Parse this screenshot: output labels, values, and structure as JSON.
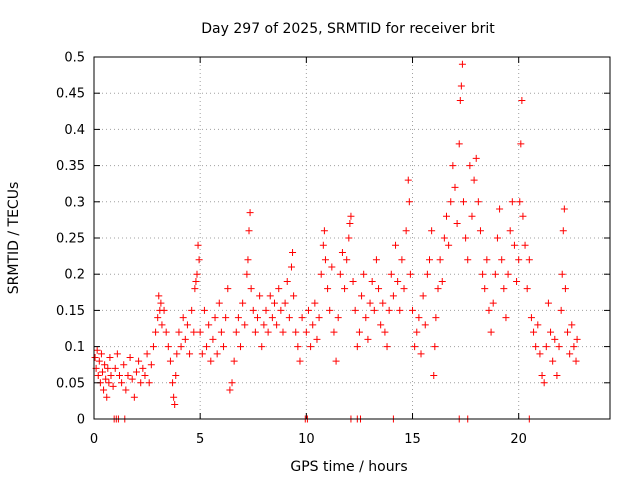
{
  "chart_data": {
    "type": "scatter",
    "title": "Day 297 of 2025, SRMTID for receiver brit",
    "xlabel": "GPS time / hours",
    "ylabel": "SRMTID / TECUs",
    "xlim": [
      0,
      24.3
    ],
    "ylim": [
      0,
      0.5
    ],
    "xticks": [
      0,
      5,
      10,
      15,
      20
    ],
    "xtick_labels": [
      "0",
      "5",
      "10",
      "15",
      "20"
    ],
    "yticks": [
      0,
      0.05,
      0.1,
      0.15,
      0.2,
      0.25,
      0.3,
      0.35,
      0.4,
      0.45,
      0.5
    ],
    "ytick_labels": [
      "0",
      "0.05",
      "0.1",
      "0.15",
      "0.2",
      "0.25",
      "0.3",
      "0.35",
      "0.4",
      "0.45",
      "0.5"
    ],
    "grid": true,
    "marker": "plus",
    "marker_color": "#ff0000",
    "series": [
      {
        "name": "SRMTID",
        "points": [
          [
            0.05,
            0.085
          ],
          [
            0.1,
            0.07
          ],
          [
            0.15,
            0.095
          ],
          [
            0.2,
            0.06
          ],
          [
            0.25,
            0.08
          ],
          [
            0.3,
            0.05
          ],
          [
            0.35,
            0.09
          ],
          [
            0.4,
            0.065
          ],
          [
            0.45,
            0.04
          ],
          [
            0.5,
            0.075
          ],
          [
            0.55,
            0.055
          ],
          [
            0.6,
            0.03
          ],
          [
            0.65,
            0.07
          ],
          [
            0.7,
            0.05
          ],
          [
            0.75,
            0.085
          ],
          [
            0.8,
            0.06
          ],
          [
            0.9,
            0.045
          ],
          [
            1.0,
            0.07
          ],
          [
            1.1,
            0.09
          ],
          [
            1.2,
            0.06
          ],
          [
            1.3,
            0.05
          ],
          [
            1.4,
            0.075
          ],
          [
            1.5,
            0.04
          ],
          [
            1.6,
            0.06
          ],
          [
            1.7,
            0.085
          ],
          [
            1.8,
            0.055
          ],
          [
            1.9,
            0.03
          ],
          [
            2.0,
            0.065
          ],
          [
            2.1,
            0.08
          ],
          [
            2.2,
            0.05
          ],
          [
            2.3,
            0.07
          ],
          [
            2.4,
            0.06
          ],
          [
            2.5,
            0.09
          ],
          [
            2.6,
            0.05
          ],
          [
            2.7,
            0.075
          ],
          [
            2.8,
            0.1
          ],
          [
            2.9,
            0.12
          ],
          [
            3.0,
            0.14
          ],
          [
            3.05,
            0.17
          ],
          [
            3.1,
            0.15
          ],
          [
            3.15,
            0.16
          ],
          [
            3.2,
            0.13
          ],
          [
            3.3,
            0.15
          ],
          [
            3.4,
            0.12
          ],
          [
            3.5,
            0.1
          ],
          [
            3.6,
            0.08
          ],
          [
            3.7,
            0.05
          ],
          [
            3.75,
            0.03
          ],
          [
            3.8,
            0.02
          ],
          [
            3.85,
            0.06
          ],
          [
            3.9,
            0.09
          ],
          [
            4.0,
            0.12
          ],
          [
            4.1,
            0.1
          ],
          [
            4.2,
            0.14
          ],
          [
            4.3,
            0.11
          ],
          [
            4.4,
            0.13
          ],
          [
            4.5,
            0.09
          ],
          [
            4.6,
            0.15
          ],
          [
            4.7,
            0.12
          ],
          [
            4.75,
            0.18
          ],
          [
            4.8,
            0.19
          ],
          [
            4.85,
            0.2
          ],
          [
            4.9,
            0.24
          ],
          [
            4.95,
            0.22
          ],
          [
            5.0,
            0.12
          ],
          [
            5.1,
            0.09
          ],
          [
            5.2,
            0.15
          ],
          [
            5.3,
            0.1
          ],
          [
            5.4,
            0.13
          ],
          [
            5.5,
            0.08
          ],
          [
            5.6,
            0.11
          ],
          [
            5.7,
            0.14
          ],
          [
            5.8,
            0.09
          ],
          [
            5.9,
            0.16
          ],
          [
            6.0,
            0.12
          ],
          [
            6.1,
            0.1
          ],
          [
            6.2,
            0.14
          ],
          [
            6.3,
            0.18
          ],
          [
            6.4,
            0.04
          ],
          [
            6.5,
            0.05
          ],
          [
            6.6,
            0.08
          ],
          [
            6.7,
            0.12
          ],
          [
            6.8,
            0.14
          ],
          [
            6.9,
            0.1
          ],
          [
            7.0,
            0.16
          ],
          [
            7.1,
            0.13
          ],
          [
            7.2,
            0.2
          ],
          [
            7.25,
            0.22
          ],
          [
            7.3,
            0.26
          ],
          [
            7.35,
            0.285
          ],
          [
            7.4,
            0.18
          ],
          [
            7.5,
            0.15
          ],
          [
            7.6,
            0.12
          ],
          [
            7.7,
            0.14
          ],
          [
            7.8,
            0.17
          ],
          [
            7.9,
            0.1
          ],
          [
            8.0,
            0.13
          ],
          [
            8.1,
            0.15
          ],
          [
            8.2,
            0.12
          ],
          [
            8.3,
            0.17
          ],
          [
            8.4,
            0.14
          ],
          [
            8.5,
            0.16
          ],
          [
            8.6,
            0.13
          ],
          [
            8.7,
            0.18
          ],
          [
            8.8,
            0.15
          ],
          [
            8.9,
            0.12
          ],
          [
            9.0,
            0.16
          ],
          [
            9.1,
            0.19
          ],
          [
            9.2,
            0.14
          ],
          [
            9.3,
            0.21
          ],
          [
            9.35,
            0.23
          ],
          [
            9.4,
            0.17
          ],
          [
            9.5,
            0.12
          ],
          [
            9.6,
            0.1
          ],
          [
            9.7,
            0.08
          ],
          [
            9.8,
            0.14
          ],
          [
            10.0,
            0.12
          ],
          [
            10.1,
            0.15
          ],
          [
            10.2,
            0.1
          ],
          [
            10.3,
            0.13
          ],
          [
            10.4,
            0.16
          ],
          [
            10.5,
            0.11
          ],
          [
            10.6,
            0.14
          ],
          [
            10.7,
            0.2
          ],
          [
            10.8,
            0.24
          ],
          [
            10.85,
            0.26
          ],
          [
            10.9,
            0.22
          ],
          [
            11.0,
            0.18
          ],
          [
            11.1,
            0.15
          ],
          [
            11.2,
            0.21
          ],
          [
            11.3,
            0.12
          ],
          [
            11.4,
            0.08
          ],
          [
            11.5,
            0.14
          ],
          [
            11.6,
            0.2
          ],
          [
            11.7,
            0.23
          ],
          [
            11.8,
            0.18
          ],
          [
            11.9,
            0.22
          ],
          [
            12.0,
            0.25
          ],
          [
            12.05,
            0.27
          ],
          [
            12.1,
            0.28
          ],
          [
            12.2,
            0.19
          ],
          [
            12.3,
            0.15
          ],
          [
            12.4,
            0.1
          ],
          [
            12.5,
            0.12
          ],
          [
            12.6,
            0.17
          ],
          [
            12.7,
            0.2
          ],
          [
            12.8,
            0.14
          ],
          [
            12.9,
            0.11
          ],
          [
            13.0,
            0.16
          ],
          [
            13.1,
            0.19
          ],
          [
            13.2,
            0.15
          ],
          [
            13.3,
            0.22
          ],
          [
            13.4,
            0.18
          ],
          [
            13.5,
            0.13
          ],
          [
            13.6,
            0.16
          ],
          [
            13.7,
            0.12
          ],
          [
            13.8,
            0.1
          ],
          [
            13.9,
            0.15
          ],
          [
            14.0,
            0.2
          ],
          [
            14.1,
            0.17
          ],
          [
            14.2,
            0.24
          ],
          [
            14.3,
            0.19
          ],
          [
            14.4,
            0.15
          ],
          [
            14.5,
            0.22
          ],
          [
            14.6,
            0.18
          ],
          [
            14.7,
            0.26
          ],
          [
            14.8,
            0.33
          ],
          [
            14.85,
            0.3
          ],
          [
            14.9,
            0.2
          ],
          [
            15.0,
            0.15
          ],
          [
            15.1,
            0.1
          ],
          [
            15.2,
            0.12
          ],
          [
            15.3,
            0.14
          ],
          [
            15.4,
            0.09
          ],
          [
            15.5,
            0.17
          ],
          [
            15.6,
            0.13
          ],
          [
            15.7,
            0.2
          ],
          [
            15.8,
            0.22
          ],
          [
            15.9,
            0.26
          ],
          [
            16.0,
            0.06
          ],
          [
            16.05,
            0.1
          ],
          [
            16.1,
            0.14
          ],
          [
            16.2,
            0.18
          ],
          [
            16.3,
            0.22
          ],
          [
            16.4,
            0.19
          ],
          [
            16.5,
            0.25
          ],
          [
            16.6,
            0.28
          ],
          [
            16.7,
            0.24
          ],
          [
            16.8,
            0.3
          ],
          [
            16.9,
            0.35
          ],
          [
            17.0,
            0.32
          ],
          [
            17.1,
            0.27
          ],
          [
            17.2,
            0.38
          ],
          [
            17.25,
            0.44
          ],
          [
            17.3,
            0.46
          ],
          [
            17.35,
            0.49
          ],
          [
            17.4,
            0.3
          ],
          [
            17.5,
            0.25
          ],
          [
            17.6,
            0.22
          ],
          [
            17.7,
            0.35
          ],
          [
            17.8,
            0.28
          ],
          [
            17.9,
            0.33
          ],
          [
            18.0,
            0.36
          ],
          [
            18.1,
            0.3
          ],
          [
            18.2,
            0.26
          ],
          [
            18.3,
            0.2
          ],
          [
            18.4,
            0.18
          ],
          [
            18.5,
            0.22
          ],
          [
            18.6,
            0.15
          ],
          [
            18.7,
            0.12
          ],
          [
            18.8,
            0.16
          ],
          [
            18.9,
            0.2
          ],
          [
            19.0,
            0.25
          ],
          [
            19.1,
            0.29
          ],
          [
            19.2,
            0.22
          ],
          [
            19.3,
            0.18
          ],
          [
            19.4,
            0.14
          ],
          [
            19.5,
            0.2
          ],
          [
            19.6,
            0.26
          ],
          [
            19.7,
            0.3
          ],
          [
            19.8,
            0.24
          ],
          [
            19.9,
            0.19
          ],
          [
            20.0,
            0.22
          ],
          [
            20.05,
            0.3
          ],
          [
            20.1,
            0.38
          ],
          [
            20.15,
            0.44
          ],
          [
            20.2,
            0.28
          ],
          [
            20.3,
            0.24
          ],
          [
            20.4,
            0.18
          ],
          [
            20.5,
            0.22
          ],
          [
            20.6,
            0.14
          ],
          [
            20.7,
            0.12
          ],
          [
            20.8,
            0.1
          ],
          [
            20.9,
            0.13
          ],
          [
            21.0,
            0.09
          ],
          [
            21.1,
            0.06
          ],
          [
            21.2,
            0.05
          ],
          [
            21.3,
            0.1
          ],
          [
            21.4,
            0.16
          ],
          [
            21.5,
            0.12
          ],
          [
            21.6,
            0.08
          ],
          [
            21.7,
            0.11
          ],
          [
            21.8,
            0.06
          ],
          [
            21.9,
            0.1
          ],
          [
            22.0,
            0.15
          ],
          [
            22.05,
            0.2
          ],
          [
            22.1,
            0.26
          ],
          [
            22.15,
            0.29
          ],
          [
            22.2,
            0.18
          ],
          [
            22.3,
            0.12
          ],
          [
            22.4,
            0.09
          ],
          [
            22.5,
            0.13
          ],
          [
            22.6,
            0.1
          ],
          [
            22.7,
            0.08
          ],
          [
            22.75,
            0.11
          ],
          [
            0.95,
            0.0
          ],
          [
            1.05,
            0.0
          ],
          [
            1.15,
            0.0
          ],
          [
            1.45,
            0.0
          ],
          [
            9.95,
            0.0
          ],
          [
            10.05,
            0.0
          ],
          [
            12.1,
            0.0
          ],
          [
            12.4,
            0.0
          ],
          [
            12.55,
            0.0
          ],
          [
            14.1,
            0.0
          ],
          [
            17.2,
            0.0
          ],
          [
            17.6,
            0.0
          ],
          [
            20.5,
            0.0
          ]
        ]
      }
    ]
  }
}
